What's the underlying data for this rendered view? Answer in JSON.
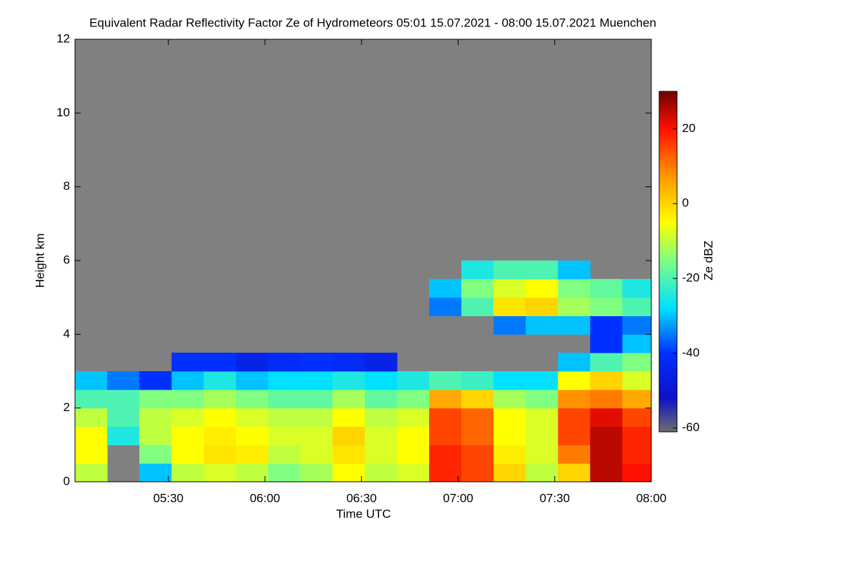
{
  "chart_data": {
    "type": "heatmap",
    "title": "Equivalent Radar Reflectivity Factor Ze of Hydrometeors   05:01 15.07.2021 - 08:00 15.07.2021 Muenchen",
    "x_label": "Time UTC",
    "y_label": "Height km",
    "colorbar_label": "Ze dBZ",
    "xlim": [
      "05:01",
      "08:00"
    ],
    "xticks": [
      "05:30",
      "06:00",
      "06:30",
      "07:00",
      "07:30",
      "08:00"
    ],
    "ylim": [
      0,
      12
    ],
    "yticks": [
      0,
      2,
      4,
      6,
      8,
      10,
      12
    ],
    "zlim": [
      -61,
      30
    ],
    "zticks": [
      -60,
      -40,
      -20,
      0,
      20
    ],
    "background": "#808080",
    "colorscale": [
      [
        -61,
        "#6e6e6e"
      ],
      [
        -52,
        "#1010c8"
      ],
      [
        -40,
        "#0030ff"
      ],
      [
        -28,
        "#00e0ff"
      ],
      [
        -15,
        "#80ff80"
      ],
      [
        -5,
        "#ffff00"
      ],
      [
        8,
        "#ff9000"
      ],
      [
        20,
        "#ff1000"
      ],
      [
        30,
        "#700000"
      ]
    ],
    "x_bins": [
      "05:01",
      "05:11",
      "05:21",
      "05:31",
      "05:41",
      "05:51",
      "06:01",
      "06:11",
      "06:21",
      "06:31",
      "06:41",
      "06:51",
      "07:01",
      "07:11",
      "07:21",
      "07:31",
      "07:41",
      "07:51",
      "08:00"
    ],
    "y_bins": [
      0,
      0.5,
      1,
      1.5,
      2,
      2.5,
      3,
      3.5,
      4,
      4.5,
      5,
      5.5,
      6,
      6.5
    ],
    "z": [
      [
        -10,
        null,
        -30,
        -10,
        -8,
        -10,
        -15,
        -12,
        -5,
        -10,
        -8,
        18,
        15,
        0,
        -10,
        0,
        25,
        20
      ],
      [
        -5,
        null,
        -15,
        -5,
        -2,
        -3,
        -10,
        -8,
        -2,
        -8,
        -5,
        18,
        15,
        -3,
        -8,
        10,
        25,
        18
      ],
      [
        -5,
        -25,
        -10,
        -5,
        -3,
        -5,
        -8,
        -8,
        0,
        -8,
        -5,
        15,
        12,
        -5,
        -8,
        15,
        25,
        18
      ],
      [
        -10,
        -20,
        -10,
        -8,
        -5,
        -8,
        -10,
        -10,
        -5,
        -10,
        -8,
        15,
        12,
        -5,
        -8,
        15,
        22,
        15
      ],
      [
        -20,
        -20,
        -15,
        -15,
        -12,
        -15,
        -18,
        -18,
        -12,
        -18,
        -15,
        5,
        0,
        -12,
        -15,
        8,
        10,
        5
      ],
      [
        -30,
        -35,
        -40,
        -30,
        -25,
        -30,
        -28,
        -28,
        -25,
        -28,
        -25,
        -20,
        -22,
        -28,
        -28,
        -5,
        0,
        -8
      ],
      [
        null,
        null,
        null,
        -40,
        -40,
        -45,
        -42,
        -40,
        -42,
        -45,
        null,
        null,
        null,
        null,
        null,
        -30,
        -20,
        -15
      ],
      [
        null,
        null,
        null,
        null,
        null,
        null,
        null,
        null,
        null,
        null,
        null,
        null,
        null,
        null,
        null,
        null,
        -40,
        -30
      ],
      [
        null,
        null,
        null,
        null,
        null,
        null,
        null,
        null,
        null,
        null,
        null,
        null,
        null,
        -35,
        -30,
        -30,
        -40,
        -35
      ],
      [
        null,
        null,
        null,
        null,
        null,
        null,
        null,
        null,
        null,
        null,
        null,
        -35,
        -20,
        -2,
        0,
        -12,
        -15,
        -20
      ],
      [
        null,
        null,
        null,
        null,
        null,
        null,
        null,
        null,
        null,
        null,
        null,
        -30,
        -15,
        -8,
        -5,
        -15,
        -18,
        -25
      ],
      [
        null,
        null,
        null,
        null,
        null,
        null,
        null,
        null,
        null,
        null,
        null,
        null,
        -25,
        -20,
        -20,
        -30,
        null,
        null
      ],
      [
        null,
        null,
        null,
        null,
        null,
        null,
        null,
        null,
        null,
        null,
        null,
        null,
        null,
        null,
        null,
        null,
        null,
        null
      ]
    ]
  }
}
